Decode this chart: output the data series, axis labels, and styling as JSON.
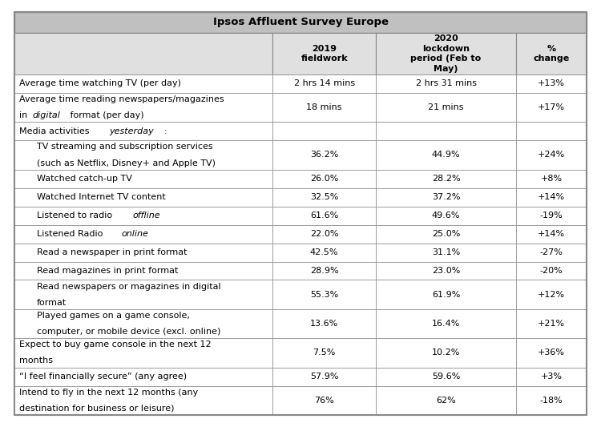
{
  "title": "Ipsos Affluent Survey Europe",
  "col_headers_line1": [
    "",
    "2019",
    "2020",
    "%"
  ],
  "col_headers_line2": [
    "",
    "fieldwork",
    "lockdown",
    "change"
  ],
  "col_headers_line3": [
    "",
    "",
    "period (Feb to",
    ""
  ],
  "col_headers_line4": [
    "",
    "",
    "May)",
    ""
  ],
  "rows": [
    {
      "label": [
        [
          "Average time watching TV (per day)",
          "normal"
        ]
      ],
      "indent": false,
      "col1": "2 hrs 14 mins",
      "col2": "2 hrs 31 mins",
      "col3": "+13%",
      "tall": false
    },
    {
      "label": [
        [
          "Average time reading newspapers/magazines",
          "normal"
        ],
        [
          "\nin ",
          "normal"
        ],
        [
          "digital",
          "italic"
        ],
        [
          " format (per day)",
          "normal"
        ]
      ],
      "indent": false,
      "col1": "18 mins",
      "col2": "21 mins",
      "col3": "+17%",
      "tall": true
    },
    {
      "label": [
        [
          "Media activities ",
          "normal"
        ],
        [
          "yesterday",
          "italic"
        ],
        [
          ":",
          "normal"
        ]
      ],
      "indent": false,
      "col1": "",
      "col2": "",
      "col3": "",
      "tall": false,
      "section_header": true
    },
    {
      "label": [
        [
          "TV streaming and subscription services",
          "normal"
        ],
        [
          "\n(such as Netflix, Disney+ and Apple TV)",
          "normal"
        ]
      ],
      "indent": true,
      "col1": "36.2%",
      "col2": "44.9%",
      "col3": "+24%",
      "tall": true
    },
    {
      "label": [
        [
          "Watched catch-up TV",
          "normal"
        ]
      ],
      "indent": true,
      "col1": "26.0%",
      "col2": "28.2%",
      "col3": "+8%",
      "tall": false
    },
    {
      "label": [
        [
          "Watched Internet TV content",
          "normal"
        ]
      ],
      "indent": true,
      "col1": "32.5%",
      "col2": "37.2%",
      "col3": "+14%",
      "tall": false
    },
    {
      "label": [
        [
          "Listened to radio ",
          "normal"
        ],
        [
          "offline",
          "italic"
        ]
      ],
      "indent": true,
      "col1": "61.6%",
      "col2": "49.6%",
      "col3": "-19%",
      "tall": false
    },
    {
      "label": [
        [
          "Listened Radio ",
          "normal"
        ],
        [
          "online",
          "italic"
        ]
      ],
      "indent": true,
      "col1": "22.0%",
      "col2": "25.0%",
      "col3": "+14%",
      "tall": false
    },
    {
      "label": [
        [
          "Read a newspaper in print format",
          "normal"
        ]
      ],
      "indent": true,
      "col1": "42.5%",
      "col2": "31.1%",
      "col3": "-27%",
      "tall": false
    },
    {
      "label": [
        [
          "Read magazines in print format",
          "normal"
        ]
      ],
      "indent": true,
      "col1": "28.9%",
      "col2": "23.0%",
      "col3": "-20%",
      "tall": false
    },
    {
      "label": [
        [
          "Read newspapers or magazines in digital",
          "normal"
        ],
        [
          "\nformat",
          "normal"
        ]
      ],
      "indent": true,
      "col1": "55.3%",
      "col2": "61.9%",
      "col3": "+12%",
      "tall": true
    },
    {
      "label": [
        [
          "Played games on a game console,",
          "normal"
        ],
        [
          "\ncomputer, or mobile device (excl. online)",
          "normal"
        ]
      ],
      "indent": true,
      "col1": "13.6%",
      "col2": "16.4%",
      "col3": "+21%",
      "tall": true
    },
    {
      "label": [
        [
          "Expect to buy game console in the next 12",
          "normal"
        ],
        [
          "\nmonths",
          "normal"
        ]
      ],
      "indent": false,
      "col1": "7.5%",
      "col2": "10.2%",
      "col3": "+36%",
      "tall": true
    },
    {
      "label": [
        [
          "“I feel financially secure” (any agree)",
          "normal"
        ]
      ],
      "indent": false,
      "col1": "57.9%",
      "col2": "59.6%",
      "col3": "+3%",
      "tall": false
    },
    {
      "label": [
        [
          "Intend to fly in the next 12 months (any",
          "normal"
        ],
        [
          "\ndestination for business or leisure)",
          "normal"
        ]
      ],
      "indent": false,
      "col1": "76%",
      "col2": "62%",
      "col3": "-18%",
      "tall": true
    }
  ],
  "header_bg": "#c0c0c0",
  "subheader_bg": "#e0e0e0",
  "row_bg_white": "#ffffff",
  "border_color": "#888888",
  "title_fontsize": 9.5,
  "body_fontsize": 8.0,
  "header_fontsize": 8.0
}
